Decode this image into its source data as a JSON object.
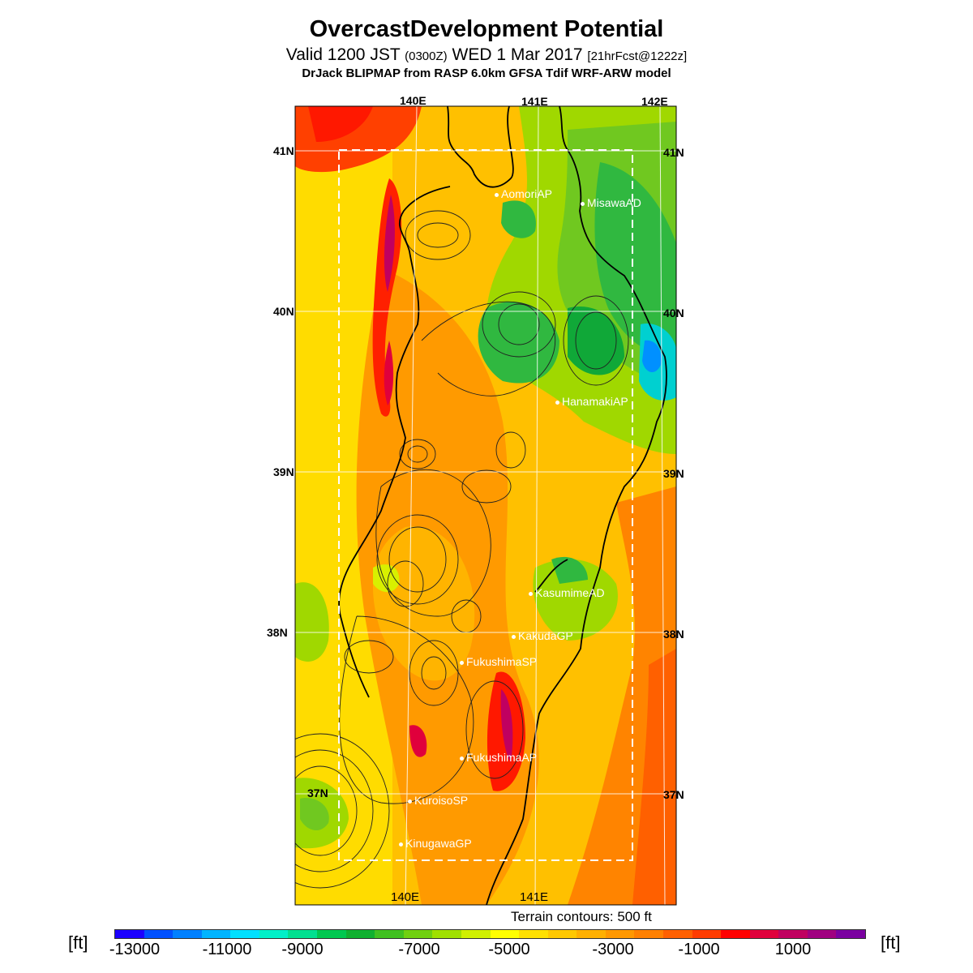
{
  "header": {
    "title": "OvercastDevelopment Potential",
    "valid_main": "Valid 1200 JST",
    "valid_zulu": "(0300Z)",
    "valid_date": "WED 1 Mar 2017",
    "forecast_tag": "[21hrFcst@1222z]",
    "model_line": "DrJack BLIPMAP from RASP 6.0km GFSA Tdif WRF-ARW model"
  },
  "map": {
    "lon_labels_top": [
      "140E",
      "141E",
      "142E"
    ],
    "lon_labels_bottom": [
      "140E",
      "141E"
    ],
    "lat_labels_left": [
      "41N",
      "40N",
      "39N",
      "38N",
      "37N"
    ],
    "lat_labels_right": [
      "41N",
      "40N",
      "39N",
      "38N",
      "37N"
    ],
    "stations": [
      {
        "name": "AomoriAP"
      },
      {
        "name": "MisawaAD"
      },
      {
        "name": "HanamakiAP"
      },
      {
        "name": "KasumimeAD"
      },
      {
        "name": "KakudaGP"
      },
      {
        "name": "FukushimaSP"
      },
      {
        "name": "FukushimaAP"
      },
      {
        "name": "KuroisoSP"
      },
      {
        "name": "KinugawaGP"
      }
    ]
  },
  "terrain_note": "Terrain contours: 500 ft",
  "colorbar": {
    "unit_label": "[ft]",
    "tick_labels": [
      "-13000",
      "-11000",
      "-9000",
      "-7000",
      "-5000",
      "-3000",
      "-1000",
      "1000"
    ],
    "colors": [
      "#1c00ff",
      "#0050ff",
      "#0080ff",
      "#00b4ff",
      "#00e0ff",
      "#00f0c8",
      "#00e090",
      "#00c850",
      "#10b030",
      "#40c020",
      "#70d010",
      "#a0e000",
      "#d0f000",
      "#ffff00",
      "#ffe000",
      "#ffc800",
      "#ffb000",
      "#ff9800",
      "#ff8000",
      "#ff6000",
      "#ff3c00",
      "#ff0000",
      "#e0003c",
      "#c00060",
      "#a00080",
      "#7a00a0"
    ]
  }
}
